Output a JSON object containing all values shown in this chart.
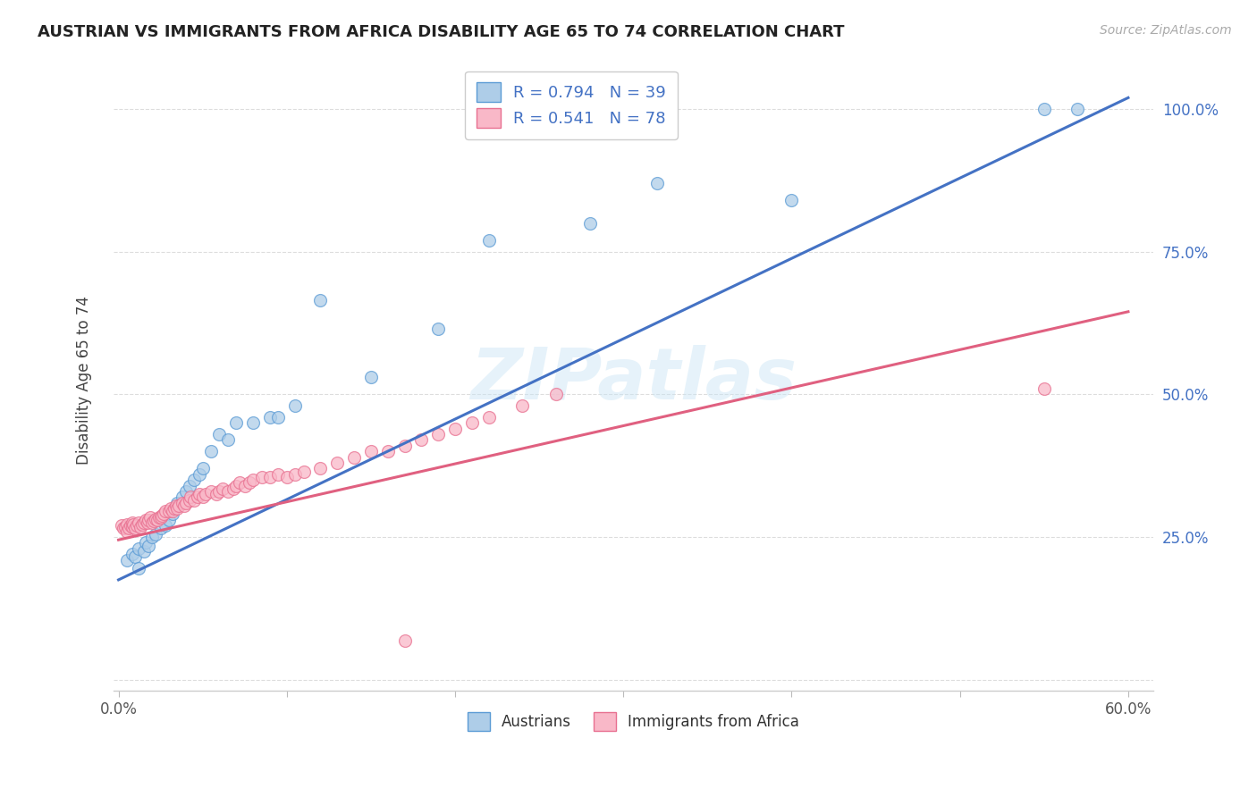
{
  "title": "AUSTRIAN VS IMMIGRANTS FROM AFRICA DISABILITY AGE 65 TO 74 CORRELATION CHART",
  "source": "Source: ZipAtlas.com",
  "ylabel": "Disability Age 65 to 74",
  "xlim": [
    -0.003,
    0.615
  ],
  "ylim": [
    -0.02,
    1.07
  ],
  "blue_R": 0.794,
  "blue_N": 39,
  "pink_R": 0.541,
  "pink_N": 78,
  "blue_fill": "#aecde8",
  "pink_fill": "#f9b8c8",
  "blue_edge": "#5b9bd5",
  "pink_edge": "#e87090",
  "blue_line": "#4472c4",
  "pink_line": "#e06080",
  "watermark": "ZIPatlas",
  "legend_label_blue": "Austrians",
  "legend_label_pink": "Immigrants from Africa",
  "blue_regression_x0": 0.0,
  "blue_regression_x1": 0.6,
  "blue_regression_y0": 0.175,
  "blue_regression_y1": 1.02,
  "pink_regression_x0": 0.0,
  "pink_regression_x1": 0.6,
  "pink_regression_y0": 0.245,
  "pink_regression_y1": 0.645,
  "blue_scatter_x": [
    0.005,
    0.008,
    0.01,
    0.012,
    0.012,
    0.015,
    0.016,
    0.018,
    0.02,
    0.022,
    0.025,
    0.028,
    0.03,
    0.032,
    0.033,
    0.035,
    0.038,
    0.04,
    0.042,
    0.045,
    0.048,
    0.05,
    0.055,
    0.06,
    0.065,
    0.07,
    0.08,
    0.09,
    0.095,
    0.105,
    0.12,
    0.15,
    0.19,
    0.22,
    0.28,
    0.32,
    0.4,
    0.55,
    0.57
  ],
  "blue_scatter_y": [
    0.21,
    0.22,
    0.215,
    0.23,
    0.195,
    0.225,
    0.24,
    0.235,
    0.25,
    0.255,
    0.265,
    0.27,
    0.28,
    0.29,
    0.3,
    0.31,
    0.32,
    0.33,
    0.34,
    0.35,
    0.36,
    0.37,
    0.4,
    0.43,
    0.42,
    0.45,
    0.45,
    0.46,
    0.46,
    0.48,
    0.665,
    0.53,
    0.615,
    0.77,
    0.8,
    0.87,
    0.84,
    1.0,
    1.0
  ],
  "pink_scatter_x": [
    0.002,
    0.003,
    0.004,
    0.005,
    0.005,
    0.006,
    0.007,
    0.008,
    0.008,
    0.009,
    0.01,
    0.011,
    0.012,
    0.013,
    0.014,
    0.015,
    0.016,
    0.017,
    0.018,
    0.019,
    0.02,
    0.021,
    0.022,
    0.023,
    0.024,
    0.025,
    0.026,
    0.027,
    0.028,
    0.03,
    0.031,
    0.032,
    0.033,
    0.034,
    0.035,
    0.036,
    0.038,
    0.039,
    0.04,
    0.042,
    0.043,
    0.045,
    0.047,
    0.048,
    0.05,
    0.052,
    0.055,
    0.058,
    0.06,
    0.062,
    0.065,
    0.068,
    0.07,
    0.072,
    0.075,
    0.078,
    0.08,
    0.085,
    0.09,
    0.095,
    0.1,
    0.105,
    0.11,
    0.12,
    0.13,
    0.14,
    0.15,
    0.16,
    0.17,
    0.18,
    0.19,
    0.2,
    0.21,
    0.22,
    0.24,
    0.26,
    0.17,
    0.55
  ],
  "pink_scatter_y": [
    0.27,
    0.265,
    0.268,
    0.272,
    0.26,
    0.265,
    0.27,
    0.275,
    0.268,
    0.272,
    0.265,
    0.27,
    0.275,
    0.268,
    0.272,
    0.275,
    0.28,
    0.275,
    0.28,
    0.285,
    0.275,
    0.278,
    0.282,
    0.28,
    0.285,
    0.285,
    0.288,
    0.29,
    0.295,
    0.295,
    0.3,
    0.295,
    0.3,
    0.305,
    0.3,
    0.305,
    0.31,
    0.305,
    0.31,
    0.315,
    0.32,
    0.315,
    0.32,
    0.325,
    0.32,
    0.325,
    0.33,
    0.325,
    0.33,
    0.335,
    0.33,
    0.335,
    0.34,
    0.345,
    0.34,
    0.345,
    0.35,
    0.355,
    0.355,
    0.36,
    0.355,
    0.36,
    0.365,
    0.37,
    0.38,
    0.39,
    0.4,
    0.4,
    0.41,
    0.42,
    0.43,
    0.44,
    0.45,
    0.46,
    0.48,
    0.5,
    0.068,
    0.51
  ]
}
